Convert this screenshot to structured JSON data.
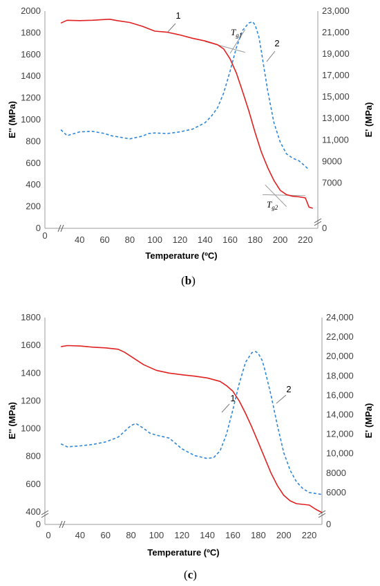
{
  "chart_data": [
    {
      "type": "line",
      "panel_label": "b",
      "xlabel": "Temperature (ºC)",
      "ylabel_left": "E'' (MPa)",
      "ylabel_right": "E' (MPa)",
      "xlim": [
        20,
        230
      ],
      "ylim_left": [
        0,
        2000
      ],
      "ylim_right": [
        0,
        23000
      ],
      "ylim_right_break_to": 5000,
      "x_origin_tick": "0",
      "x_ticks": [
        40,
        60,
        80,
        100,
        120,
        140,
        160,
        180,
        200,
        220
      ],
      "y_ticks_left": [
        "0",
        "200",
        "400",
        "600",
        "800",
        "1000",
        "1200",
        "1400",
        "1600",
        "1800",
        "2000"
      ],
      "y_ticks_right": [
        "0",
        "7000",
        "9000",
        "11,000",
        "13,000",
        "15,000",
        "17,000",
        "19,000",
        "21,000",
        "23,000"
      ],
      "annotations": {
        "curve1": "1",
        "curve2": "2",
        "tg1": "T",
        "tg1_sub": "g1",
        "tg2": "T",
        "tg2_sub": "g2"
      },
      "tangent_lines": [
        {
          "x": [
            140,
            172
          ],
          "y": [
            1720,
            1620
          ]
        },
        {
          "x": [
            160,
            172
          ],
          "y": [
            1610,
            1830
          ]
        },
        {
          "x": [
            188,
            205
          ],
          "y": [
            400,
            200
          ]
        },
        {
          "x": [
            186,
            220
          ],
          "y": [
            310,
            300
          ]
        }
      ],
      "series": [
        {
          "name": "1",
          "axis": "left",
          "color": "#e02020",
          "dash": "solid",
          "x": [
            25,
            30,
            40,
            50,
            60,
            64,
            70,
            80,
            90,
            100,
            110,
            120,
            130,
            140,
            150,
            155,
            160,
            165,
            170,
            175,
            180,
            185,
            190,
            195,
            200,
            205,
            210,
            215,
            220,
            223,
            226
          ],
          "y": [
            1890,
            1915,
            1912,
            1915,
            1922,
            1925,
            1912,
            1895,
            1860,
            1815,
            1805,
            1780,
            1750,
            1725,
            1690,
            1650,
            1560,
            1430,
            1260,
            1080,
            880,
            700,
            560,
            440,
            350,
            310,
            295,
            290,
            280,
            195,
            185
          ]
        },
        {
          "name": "2",
          "axis": "right",
          "color": "#2e86d8",
          "dash": "dashed",
          "x": [
            25,
            30,
            40,
            50,
            60,
            65,
            70,
            80,
            90,
            95,
            100,
            110,
            120,
            130,
            140,
            145,
            150,
            155,
            160,
            165,
            170,
            175,
            178,
            180,
            183,
            185,
            190,
            195,
            200,
            205,
            210,
            215,
            220,
            223
          ],
          "y": [
            11950,
            11400,
            11750,
            11800,
            11600,
            11400,
            11300,
            11100,
            11350,
            11600,
            11650,
            11600,
            11750,
            12000,
            12600,
            13200,
            14000,
            15400,
            17400,
            19600,
            21200,
            21900,
            22000,
            21700,
            20600,
            19200,
            15600,
            12600,
            10800,
            9700,
            9300,
            9050,
            8550,
            8200
          ]
        }
      ]
    },
    {
      "type": "line",
      "panel_label": "c",
      "xlabel": "Temperature (ºC)",
      "ylabel_left": "E'' (MPa)",
      "ylabel_right": "E' (MPa)",
      "xlim": [
        20,
        230
      ],
      "ylim_left": [
        0,
        1800
      ],
      "ylim_left_break_to": 400,
      "ylim_right": [
        0,
        24000
      ],
      "ylim_right_break_to": 4000,
      "x_origin_tick": "0",
      "x_ticks": [
        40,
        60,
        80,
        100,
        120,
        140,
        160,
        180,
        200,
        220
      ],
      "y_ticks_left": [
        "0",
        "400",
        "600",
        "800",
        "1000",
        "1200",
        "1400",
        "1600",
        "1800"
      ],
      "y_ticks_right": [
        "0",
        "6000",
        "8000",
        "10,000",
        "12,000",
        "14,000",
        "16,000",
        "18,000",
        "20,000",
        "22,000",
        "24,000"
      ],
      "annotations": {
        "curve1": "1",
        "curve2": "2"
      },
      "tangent_lines": [],
      "series": [
        {
          "name": "1",
          "axis": "left",
          "color": "#e02020",
          "dash": "solid",
          "x": [
            25,
            30,
            40,
            50,
            60,
            70,
            75,
            80,
            90,
            100,
            110,
            120,
            130,
            140,
            150,
            155,
            160,
            165,
            170,
            175,
            180,
            185,
            190,
            195,
            200,
            205,
            210,
            215,
            220,
            225,
            230
          ],
          "y": [
            1590,
            1598,
            1595,
            1587,
            1582,
            1572,
            1550,
            1520,
            1460,
            1420,
            1400,
            1388,
            1378,
            1365,
            1340,
            1310,
            1270,
            1200,
            1110,
            1010,
            900,
            790,
            680,
            590,
            520,
            480,
            460,
            455,
            450,
            420,
            380
          ]
        },
        {
          "name": "2",
          "axis": "right",
          "color": "#2e86d8",
          "dash": "dashed",
          "x": [
            25,
            30,
            40,
            50,
            60,
            70,
            75,
            80,
            84,
            90,
            95,
            100,
            110,
            120,
            130,
            140,
            145,
            150,
            155,
            160,
            165,
            170,
            175,
            178,
            180,
            183,
            185,
            190,
            195,
            200,
            205,
            210,
            215,
            220,
            230
          ],
          "y": [
            11000,
            10700,
            10800,
            10950,
            11200,
            11700,
            12300,
            12900,
            13100,
            12600,
            12100,
            11900,
            11600,
            10500,
            9800,
            9500,
            9600,
            10300,
            12000,
            14500,
            17200,
            19400,
            20400,
            20500,
            20300,
            19600,
            18700,
            16000,
            12900,
            10100,
            8300,
            7100,
            6400,
            6000,
            5800
          ]
        }
      ]
    }
  ]
}
